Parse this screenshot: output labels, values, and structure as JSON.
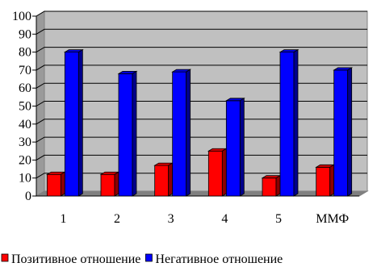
{
  "chart_data": {
    "type": "bar",
    "bar_style": "3d",
    "categories": [
      "1",
      "2",
      "3",
      "4",
      "5",
      "ММФ"
    ],
    "series": [
      {
        "name": "Позитивное отношение",
        "color": "#ff0000",
        "values": [
          12,
          12,
          17,
          25,
          10,
          16
        ]
      },
      {
        "name": "Негативное отношение",
        "color": "#0000ff",
        "values": [
          80,
          68,
          69,
          53,
          80,
          70
        ]
      }
    ],
    "yticks": [
      "0",
      "10",
      "20",
      "30",
      "40",
      "50",
      "60",
      "70",
      "80",
      "90",
      "100"
    ],
    "ylim": [
      0,
      100
    ],
    "grid": true,
    "legend_position": "bottom",
    "wall_color": "#c0c0c0"
  }
}
